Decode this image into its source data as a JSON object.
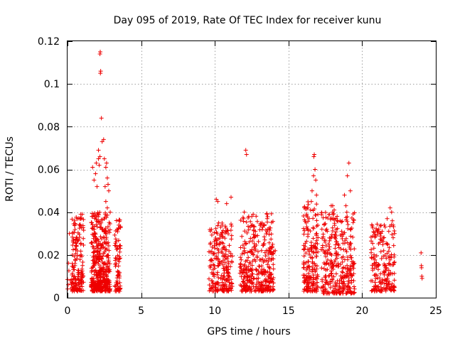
{
  "chart_data": {
    "type": "scatter",
    "title": "Day 095 of 2019, Rate Of TEC Index for receiver kunu",
    "xlabel": "GPS time / hours",
    "ylabel": "ROTI / TECUs",
    "xlim": [
      0,
      25
    ],
    "ylim": [
      0,
      0.12
    ],
    "xticks": [
      0,
      5,
      10,
      15,
      20,
      25
    ],
    "yticks": [
      0,
      0.02,
      0.04,
      0.06,
      0.08,
      0.1,
      0.12
    ],
    "xtick_labels": [
      "0",
      "5",
      "10",
      "15",
      "20",
      "25"
    ],
    "ytick_labels": [
      "0",
      "0.02",
      "0.04",
      "0.06",
      "0.08",
      "0.1",
      "0.12"
    ],
    "grid": true,
    "marker": "plus",
    "color": "#ee0000",
    "clusters": [
      {
        "x_range": [
          0.0,
          0.6
        ],
        "y_range": [
          0.004,
          0.02
        ],
        "count": 25
      },
      {
        "x_range": [
          0.3,
          1.1
        ],
        "y_range": [
          0.003,
          0.038
        ],
        "count": 140
      },
      {
        "x_range": [
          1.6,
          2.9
        ],
        "y_range": [
          0.003,
          0.04
        ],
        "count": 420
      },
      {
        "x_range": [
          3.2,
          3.6
        ],
        "y_range": [
          0.003,
          0.038
        ],
        "count": 80
      },
      {
        "x_range": [
          9.6,
          11.2
        ],
        "y_range": [
          0.003,
          0.035
        ],
        "count": 220
      },
      {
        "x_range": [
          11.7,
          14.0
        ],
        "y_range": [
          0.003,
          0.04
        ],
        "count": 360
      },
      {
        "x_range": [
          16.0,
          17.0
        ],
        "y_range": [
          0.003,
          0.045
        ],
        "count": 190
      },
      {
        "x_range": [
          17.2,
          19.5
        ],
        "y_range": [
          0.002,
          0.04
        ],
        "count": 330
      },
      {
        "x_range": [
          20.6,
          22.2
        ],
        "y_range": [
          0.003,
          0.035
        ],
        "count": 200
      }
    ],
    "points": [
      [
        0.12,
        0.03
      ],
      [
        0.2,
        0.008
      ],
      [
        0.5,
        0.016
      ],
      [
        0.8,
        0.034
      ],
      [
        0.9,
        0.039
      ],
      [
        1.0,
        0.039
      ],
      [
        1.7,
        0.061
      ],
      [
        1.8,
        0.055
      ],
      [
        1.9,
        0.058
      ],
      [
        1.95,
        0.063
      ],
      [
        2.0,
        0.052
      ],
      [
        2.1,
        0.065
      ],
      [
        2.1,
        0.069
      ],
      [
        2.15,
        0.062
      ],
      [
        2.2,
        0.066
      ],
      [
        2.2,
        0.114
      ],
      [
        2.22,
        0.115
      ],
      [
        2.23,
        0.105
      ],
      [
        2.25,
        0.106
      ],
      [
        2.3,
        0.084
      ],
      [
        2.35,
        0.073
      ],
      [
        2.45,
        0.074
      ],
      [
        2.5,
        0.065
      ],
      [
        2.55,
        0.052
      ],
      [
        2.6,
        0.061
      ],
      [
        2.65,
        0.063
      ],
      [
        2.7,
        0.056
      ],
      [
        2.75,
        0.053
      ],
      [
        2.8,
        0.05
      ],
      [
        2.6,
        0.045
      ],
      [
        2.7,
        0.042
      ],
      [
        10.1,
        0.046
      ],
      [
        10.2,
        0.045
      ],
      [
        10.4,
        0.033
      ],
      [
        10.5,
        0.034
      ],
      [
        10.8,
        0.044
      ],
      [
        11.1,
        0.047
      ],
      [
        12.0,
        0.04
      ],
      [
        12.1,
        0.069
      ],
      [
        12.15,
        0.067
      ],
      [
        12.3,
        0.038
      ],
      [
        12.6,
        0.039
      ],
      [
        13.2,
        0.035
      ],
      [
        13.6,
        0.032
      ],
      [
        14.1,
        0.022
      ],
      [
        16.2,
        0.035
      ],
      [
        16.4,
        0.037
      ],
      [
        16.5,
        0.041
      ],
      [
        16.55,
        0.045
      ],
      [
        16.6,
        0.05
      ],
      [
        16.7,
        0.057
      ],
      [
        16.72,
        0.066
      ],
      [
        16.75,
        0.067
      ],
      [
        16.8,
        0.06
      ],
      [
        16.85,
        0.055
      ],
      [
        16.9,
        0.048
      ],
      [
        17.9,
        0.043
      ],
      [
        18.0,
        0.043
      ],
      [
        18.1,
        0.041
      ],
      [
        18.3,
        0.038
      ],
      [
        18.5,
        0.036
      ],
      [
        18.8,
        0.048
      ],
      [
        18.9,
        0.043
      ],
      [
        19.0,
        0.057
      ],
      [
        19.1,
        0.063
      ],
      [
        19.2,
        0.05
      ],
      [
        21.5,
        0.034
      ],
      [
        21.7,
        0.037
      ],
      [
        21.9,
        0.042
      ],
      [
        22.0,
        0.04
      ],
      [
        22.05,
        0.036
      ],
      [
        22.1,
        0.034
      ],
      [
        22.2,
        0.03
      ],
      [
        24.0,
        0.021
      ],
      [
        24.02,
        0.015
      ],
      [
        24.03,
        0.014
      ],
      [
        24.05,
        0.01
      ],
      [
        24.07,
        0.009
      ]
    ]
  }
}
